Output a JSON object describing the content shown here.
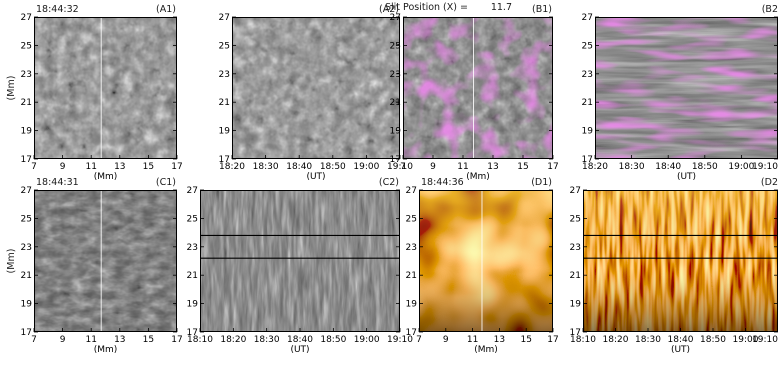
{
  "header": {
    "slit_label": "Slit Position (X) =",
    "slit_value": "11.7"
  },
  "colors": {
    "magenta": "#e040e0",
    "gold": "#f0a800",
    "dark_gold": "#3a1e00",
    "slit_line": "#ffffff",
    "ref_line": "#000000"
  },
  "units": {
    "mm": "(Mm)",
    "ut": "(UT)"
  },
  "panels": [
    {
      "id": "A1",
      "label": "(A1)",
      "time": "18:44:32",
      "kind": "map",
      "style": "gray",
      "x_ticks": [
        "7",
        "9",
        "11",
        "13",
        "15",
        "17"
      ],
      "y_ticks": [
        "17",
        "19",
        "21",
        "23",
        "25",
        "27"
      ],
      "x_unit": "(Mm)",
      "y_unit": "(Mm)",
      "slit_x_value": 11.7
    },
    {
      "id": "A2",
      "label": "(A2)",
      "time": "",
      "kind": "timeslice",
      "style": "gray",
      "x_ticks": [
        "18:20",
        "18:30",
        "18:40",
        "18:50",
        "19:00",
        "19:10"
      ],
      "y_ticks": [
        "17",
        "19",
        "21",
        "23",
        "25",
        "27"
      ],
      "x_unit": "(UT)",
      "y_unit": ""
    },
    {
      "id": "B1",
      "label": "(B1)",
      "time": "",
      "kind": "map",
      "style": "magenta",
      "x_ticks": [
        "7",
        "9",
        "11",
        "13",
        "15",
        "17"
      ],
      "y_ticks": [
        "17",
        "19",
        "21",
        "23",
        "25",
        "27"
      ],
      "x_unit": "(Mm)",
      "y_unit": "",
      "slit_x_value": 11.7
    },
    {
      "id": "B2",
      "label": "(B2",
      "time": "",
      "kind": "timeslice",
      "style": "magenta",
      "x_ticks": [
        "18:20",
        "18:30",
        "18:40",
        "18:50",
        "19:00",
        "19:10"
      ],
      "y_ticks": [
        "17",
        "19",
        "21",
        "23",
        "25",
        "27"
      ],
      "x_unit": "(UT)",
      "y_unit": ""
    },
    {
      "id": "C1",
      "label": "(C1)",
      "time": "18:44:31",
      "kind": "map",
      "style": "gray_dim",
      "x_ticks": [
        "7",
        "9",
        "11",
        "13",
        "15",
        "17"
      ],
      "y_ticks": [
        "17",
        "19",
        "21",
        "23",
        "25",
        "27"
      ],
      "x_unit": "(Mm)",
      "y_unit": "(Mm)",
      "slit_x_value": 11.7
    },
    {
      "id": "C2",
      "label": "(C2)",
      "time": "",
      "kind": "timeslice",
      "style": "gray_streak",
      "x_ticks": [
        "18:10",
        "18:20",
        "18:30",
        "18:40",
        "18:50",
        "19:00",
        "19:10"
      ],
      "y_ticks": [
        "17",
        "19",
        "21",
        "23",
        "25",
        "27"
      ],
      "x_unit": "(UT)",
      "y_unit": "",
      "hlines_y_value": [
        23.8,
        22.2
      ]
    },
    {
      "id": "D1",
      "label": "(D1)",
      "time": "18:44:36",
      "kind": "map",
      "style": "gold",
      "x_ticks": [
        "7",
        "9",
        "11",
        "13",
        "15",
        "17"
      ],
      "y_ticks": [
        "17",
        "19",
        "21",
        "23",
        "25",
        "27"
      ],
      "x_unit": "(Mm)",
      "y_unit": "",
      "slit_x_value": 11.7
    },
    {
      "id": "D2",
      "label": "(D2",
      "time": "",
      "kind": "timeslice",
      "style": "gold_streak",
      "x_ticks": [
        "18:10",
        "18:20",
        "18:30",
        "18:40",
        "18:50",
        "19:00",
        "19:10"
      ],
      "y_ticks": [
        "17",
        "19",
        "21",
        "23",
        "25",
        "27"
      ],
      "x_unit": "(UT)",
      "y_unit": "",
      "hlines_y_value": [
        23.8,
        22.2
      ]
    }
  ]
}
